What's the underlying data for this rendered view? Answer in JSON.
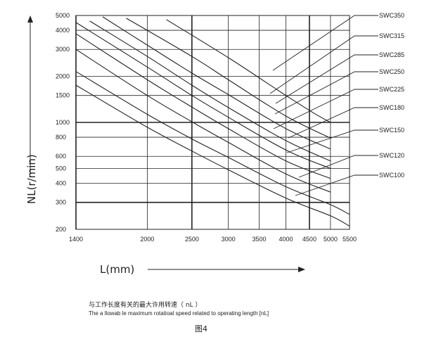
{
  "chart_data": {
    "type": "line",
    "xlabel": "L(mm)",
    "ylabel": "NL(r/min)",
    "x_tick_labels": [
      "1400",
      "2000",
      "2500",
      "3000",
      "3500",
      "4000",
      "4500",
      "5000",
      "5500"
    ],
    "y_tick_labels": [
      "5000",
      "4000",
      "3000",
      "2000",
      "1500",
      "1000",
      "800",
      "600",
      "500",
      "400",
      "300",
      "200"
    ],
    "xlim": [
      1400,
      5500
    ],
    "ylim": [
      200,
      5000
    ],
    "grid": true,
    "series": [
      {
        "name": "SWC350",
        "x": [
          2200,
          3000,
          4000,
          4600,
          5000
        ],
        "y": [
          4700,
          2650,
          1500,
          1150,
          1000
        ]
      },
      {
        "name": "SWC315",
        "x": [
          1800,
          2500,
          3000,
          4000,
          5000
        ],
        "y": [
          4800,
          2700,
          1900,
          1100,
          790
        ]
      },
      {
        "name": "SWC285",
        "x": [
          1600,
          2000,
          2500,
          3000,
          4000,
          5000
        ],
        "y": [
          4900,
          3200,
          2100,
          1520,
          910,
          670
        ]
      },
      {
        "name": "SWC250",
        "x": [
          1500,
          2000,
          2500,
          3000,
          4000,
          5000
        ],
        "y": [
          4600,
          2700,
          1750,
          1250,
          760,
          560
        ]
      },
      {
        "name": "SWC225",
        "x": [
          1400,
          2000,
          2500,
          3000,
          4000,
          5000
        ],
        "y": [
          4500,
          2300,
          1500,
          1080,
          660,
          500
        ]
      },
      {
        "name": "SWC180",
        "x": [
          1400,
          2000,
          2500,
          3000,
          4000,
          5000
        ],
        "y": [
          3800,
          1900,
          1260,
          910,
          560,
          430
        ]
      },
      {
        "name": "SWC150",
        "x": [
          1400,
          2000,
          2500,
          3000,
          4000,
          5000
        ],
        "y": [
          3000,
          1500,
          1010,
          740,
          460,
          350
        ]
      },
      {
        "name": "SWC120",
        "x": [
          1400,
          2000,
          2500,
          3000,
          4000,
          5000,
          5500
        ],
        "y": [
          2150,
          1130,
          780,
          590,
          380,
          290,
          250
        ]
      },
      {
        "name": "SWC100",
        "x": [
          1400,
          2000,
          2500,
          3000,
          4000,
          5000,
          5500
        ],
        "y": [
          1750,
          930,
          650,
          490,
          320,
          245,
          210
        ]
      }
    ]
  },
  "caption": {
    "chinese": "与工作长度有关的最大许用转速（ nL ）",
    "english": "The a llowab le maximum rotatioal speed related to operating length [nL]"
  },
  "figure_label": "图4"
}
